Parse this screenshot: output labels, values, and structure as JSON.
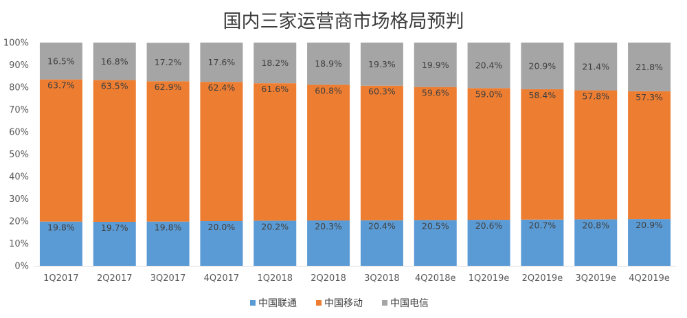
{
  "chart_data": {
    "type": "bar",
    "stacked": true,
    "title": "国内三家运营商市场格局预判",
    "xlabel": "",
    "ylabel": "",
    "ylim": [
      0,
      100
    ],
    "y_ticks": [
      "0%",
      "10%",
      "20%",
      "30%",
      "40%",
      "50%",
      "60%",
      "70%",
      "80%",
      "90%",
      "100%"
    ],
    "grid": false,
    "legend_position": "bottom",
    "categories": [
      "1Q2017",
      "2Q2017",
      "3Q2017",
      "4Q2017",
      "1Q2018",
      "2Q2018",
      "3Q2018",
      "4Q2018e",
      "1Q2019e",
      "2Q2019e",
      "3Q2019e",
      "4Q2019e"
    ],
    "series": [
      {
        "name": "中国联通",
        "color": "#5b9bd5",
        "values": [
          19.8,
          19.7,
          19.8,
          20.0,
          20.2,
          20.3,
          20.4,
          20.5,
          20.6,
          20.7,
          20.8,
          20.9
        ],
        "labels": [
          "19.8%",
          "19.7%",
          "19.8%",
          "20.0%",
          "20.2%",
          "20.3%",
          "20.4%",
          "20.5%",
          "20.6%",
          "20.7%",
          "20.8%",
          "20.9%"
        ]
      },
      {
        "name": "中国移动",
        "color": "#ed7d31",
        "values": [
          63.7,
          63.5,
          62.9,
          62.4,
          61.6,
          60.8,
          60.3,
          59.6,
          59.0,
          58.4,
          57.8,
          57.3
        ],
        "labels": [
          "63.7%",
          "63.5%",
          "62.9%",
          "62.4%",
          "61.6%",
          "60.8%",
          "60.3%",
          "59.6%",
          "59.0%",
          "58.4%",
          "57.8%",
          "57.3%"
        ]
      },
      {
        "name": "中国电信",
        "color": "#a5a5a5",
        "values": [
          16.5,
          16.8,
          17.2,
          17.6,
          18.2,
          18.9,
          19.3,
          19.9,
          20.4,
          20.9,
          21.4,
          21.8
        ],
        "labels": [
          "16.5%",
          "16.8%",
          "17.2%",
          "17.6%",
          "18.2%",
          "18.9%",
          "19.3%",
          "19.9%",
          "20.4%",
          "20.9%",
          "21.4%",
          "21.8%"
        ]
      }
    ]
  }
}
